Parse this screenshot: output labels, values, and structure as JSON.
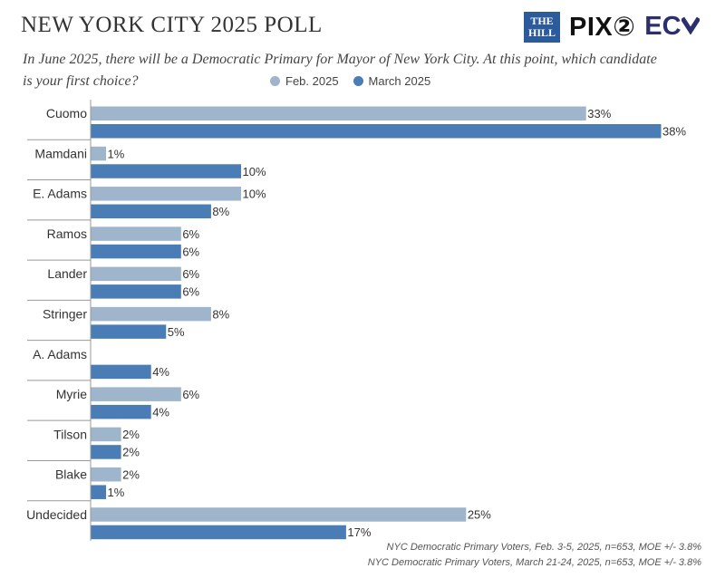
{
  "header": {
    "title": "NEW YORK CITY 2025 POLL",
    "question": "In June 2025, there will be a Democratic Primary for Mayor of New York City. At this point, which candidate is your first choice?",
    "logos": {
      "hill_line1": "THE",
      "hill_line2": "HILL",
      "pix": "PIX②",
      "ec": "EC"
    }
  },
  "colors": {
    "feb": "#9fb5cc",
    "march": "#4a7db5",
    "axis": "#999999",
    "label": "#333333"
  },
  "chart_data": {
    "type": "bar",
    "orientation": "horizontal",
    "categories": [
      "Cuomo",
      "Mamdani",
      "E. Adams",
      "Ramos",
      "Lander",
      "Stringer",
      "A. Adams",
      "Myrie",
      "Tilson",
      "Blake",
      "Undecided"
    ],
    "series": [
      {
        "name": "Feb. 2025",
        "values": [
          33,
          1,
          10,
          6,
          6,
          8,
          null,
          6,
          2,
          2,
          25
        ],
        "labels": [
          "33%",
          "1%",
          "10%",
          "6%",
          "6%",
          "8%",
          "",
          "6%",
          "2%",
          "2%",
          "25%"
        ]
      },
      {
        "name": "March 2025",
        "values": [
          38,
          10,
          8,
          6,
          6,
          5,
          4,
          4,
          2,
          1,
          17
        ],
        "labels": [
          "38%",
          "10%",
          "8%",
          "6%",
          "6%",
          "5%",
          "4%",
          "4%",
          "2%",
          "1%",
          "17%"
        ]
      }
    ],
    "xlim": [
      0,
      38
    ],
    "grid": false,
    "legend": "top"
  },
  "footnotes": [
    "NYC Democratic Primary Voters, Feb. 3-5, 2025, n=653, MOE +/- 3.8%",
    "NYC Democratic Primary Voters, March 21-24, 2025, n=653, MOE +/- 3.8%"
  ]
}
